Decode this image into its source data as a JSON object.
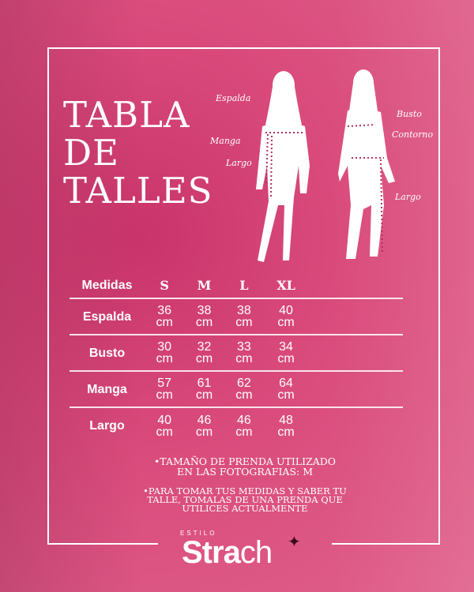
{
  "title": {
    "line1": "TABLA",
    "line2": "DE",
    "line3": "TALLES"
  },
  "figure_labels": {
    "espalda": "Espalda",
    "manga": "Manga",
    "largo_left": "Largo",
    "busto": "Busto",
    "contorno": "Contorno",
    "largo_right": "Largo"
  },
  "table": {
    "headers": [
      "Medidas",
      "S",
      "M",
      "L",
      "XL"
    ],
    "rows": [
      {
        "label": "Espalda",
        "values": [
          "36",
          "38",
          "38",
          "40"
        ]
      },
      {
        "label": "Busto",
        "values": [
          "30",
          "32",
          "33",
          "34"
        ]
      },
      {
        "label": "Manga",
        "values": [
          "57",
          "61",
          "62",
          "64"
        ]
      },
      {
        "label": "Largo",
        "values": [
          "40",
          "46",
          "46",
          "48"
        ]
      }
    ],
    "unit": "cm"
  },
  "notes": {
    "note1_l1": "•TAMAÑO DE PRENDA UTILIZADO",
    "note1_l2": "EN LAS FOTOGRAFIAS:  M",
    "note2_l1": "•PARA TOMAR TUS MEDIDAS Y SABER TU",
    "note2_l2": "TALLE, TOMALAS DE UNA PRENDA QUE",
    "note2_l3": "UTILICES ACTUALMENTE"
  },
  "brand": {
    "small": "ESTILO",
    "name_bold": "Stra",
    "name_light": "ch"
  },
  "colors": {
    "background": "#d94a7b",
    "text": "#ffffff"
  }
}
